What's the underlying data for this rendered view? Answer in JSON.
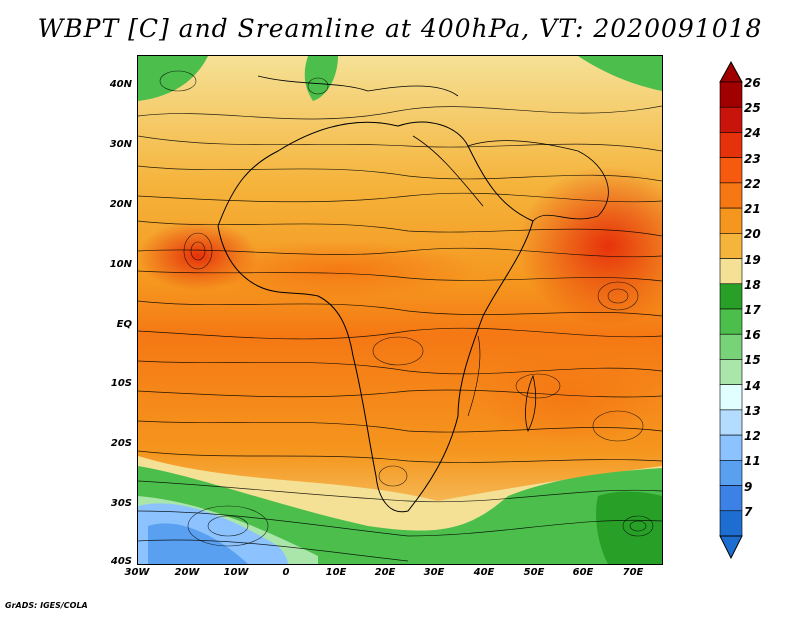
{
  "title": "WBPT [C] and Sreamline at 400hPa, VT: 2020091018",
  "credit": "GrADS: IGES/COLA",
  "lat_labels": [
    "40N",
    "30N",
    "20N",
    "10N",
    "EQ",
    "10S",
    "20S",
    "30S",
    "40S"
  ],
  "lon_labels": [
    "30W",
    "20W",
    "10W",
    "0",
    "10E",
    "20E",
    "30E",
    "40E",
    "50E",
    "60E",
    "70E"
  ],
  "colorbar": {
    "labels": [
      "26",
      "25",
      "24",
      "23",
      "22",
      "21",
      "20",
      "19",
      "18",
      "17",
      "16",
      "15",
      "14",
      "13",
      "12",
      "11",
      "9",
      "7"
    ],
    "colors": [
      "#a00000",
      "#c8140a",
      "#e6320a",
      "#f55a0f",
      "#f57814",
      "#f5961e",
      "#f5b43c",
      "#f5e196",
      "#28a028",
      "#4bbe4b",
      "#78d278",
      "#aae6aa",
      "#e1ffff",
      "#b4dcff",
      "#8cc3ff",
      "#5aa0f0",
      "#3c82e6",
      "#1e6ed2"
    ]
  }
}
